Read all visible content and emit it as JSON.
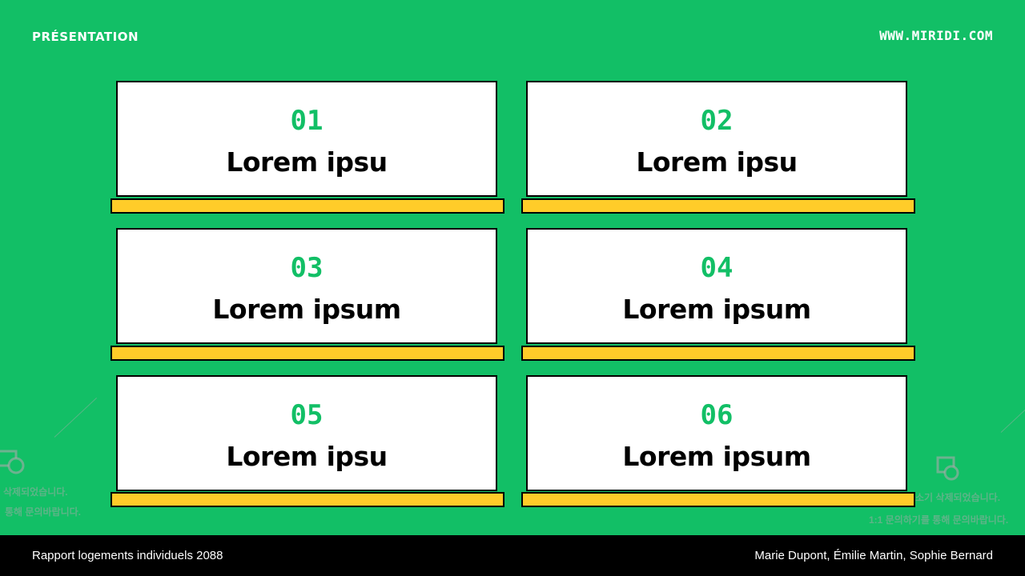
{
  "header": {
    "left": "PRÉSENTATION",
    "right": "WWW.MIRIDI.COM"
  },
  "cards": [
    {
      "number": "01",
      "title": "Lorem ipsu"
    },
    {
      "number": "02",
      "title": "Lorem ipsu"
    },
    {
      "number": "03",
      "title": "Lorem ipsum"
    },
    {
      "number": "04",
      "title": "Lorem ipsum"
    },
    {
      "number": "05",
      "title": "Lorem ipsu"
    },
    {
      "number": "06",
      "title": "Lorem ipsum"
    }
  ],
  "footer": {
    "left": "Rapport logements individuels 2088",
    "right": "Marie Dupont, Émilie Martin, Sophie Bernard"
  },
  "ghost": {
    "left_line1": "삭제되었습니다.",
    "left_line2": "통해 문의바랍니다.",
    "right_line1": "소기 삭제되었습니다.",
    "right_line2": "1:1 문의하기를 통해 문의바랍니다."
  },
  "colors": {
    "background": "#12BF66",
    "accent_bar": "#FFCC29",
    "number": "#12BF66",
    "footer": "#000000"
  }
}
